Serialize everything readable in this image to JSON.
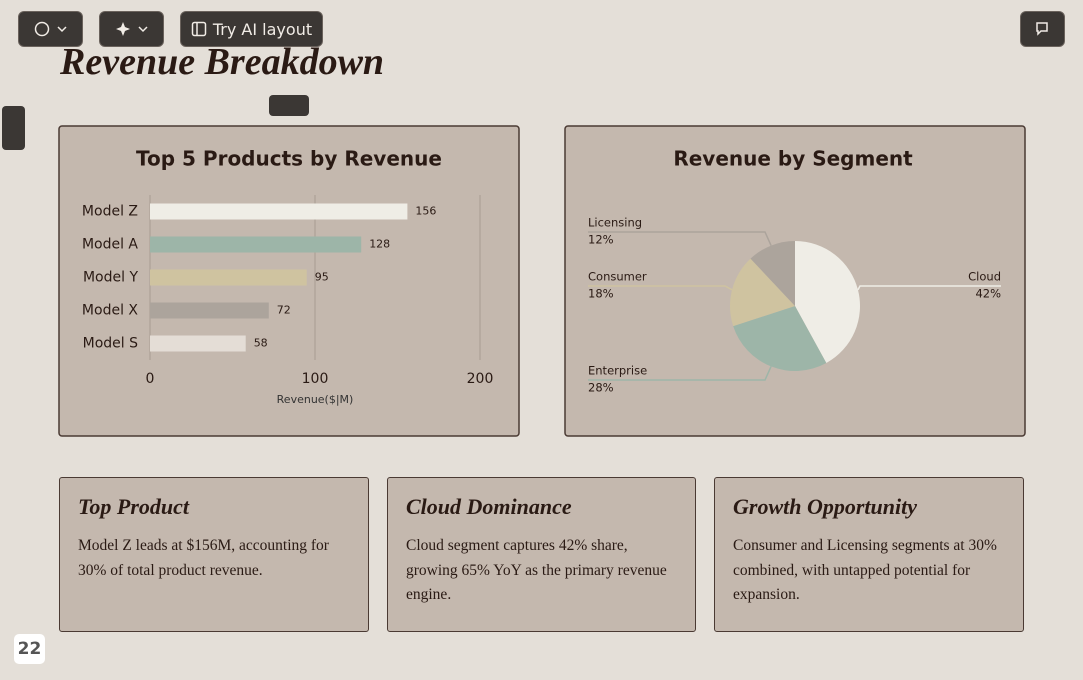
{
  "toolbar": {
    "ai_button": "Try AI layout"
  },
  "title": "Revenue Breakdown",
  "chart_data": [
    {
      "type": "bar",
      "orientation": "horizontal",
      "title": "Top 5 Products by Revenue",
      "categories": [
        "Model Z",
        "Model A",
        "Model Y",
        "Model X",
        "Model S"
      ],
      "values": [
        156,
        128,
        95,
        72,
        58
      ],
      "colors": [
        "#efede6",
        "#9db5a8",
        "#cfc3a0",
        "#aca49c",
        "#e4ddd6"
      ],
      "xlim": [
        0,
        200
      ],
      "xticks": [
        0,
        100,
        200
      ],
      "x_label": "Revenue($|M)",
      "grid": true
    },
    {
      "type": "pie",
      "title": "Revenue by Segment",
      "categories": [
        "Cloud",
        "Enterprise",
        "Consumer",
        "Licensing"
      ],
      "values": [
        42,
        28,
        18,
        12
      ],
      "value_labels": [
        "42%",
        "28%",
        "18%",
        "12%"
      ],
      "colors": [
        "#efede6",
        "#9db5a8",
        "#cfc3a0",
        "#aca49c"
      ]
    }
  ],
  "cards": [
    {
      "title": "Top Product",
      "body": "Model Z leads at $156M, accounting for 30% of total product revenue."
    },
    {
      "title": "Cloud Dominance",
      "body": "Cloud segment captures 42% share, growing 65% YoY as the primary revenue engine."
    },
    {
      "title": "Growth Opportunity",
      "body": "Consumer and Licensing segments at 30% combined, with untapped potential for expansion."
    }
  ],
  "page_number": 22
}
